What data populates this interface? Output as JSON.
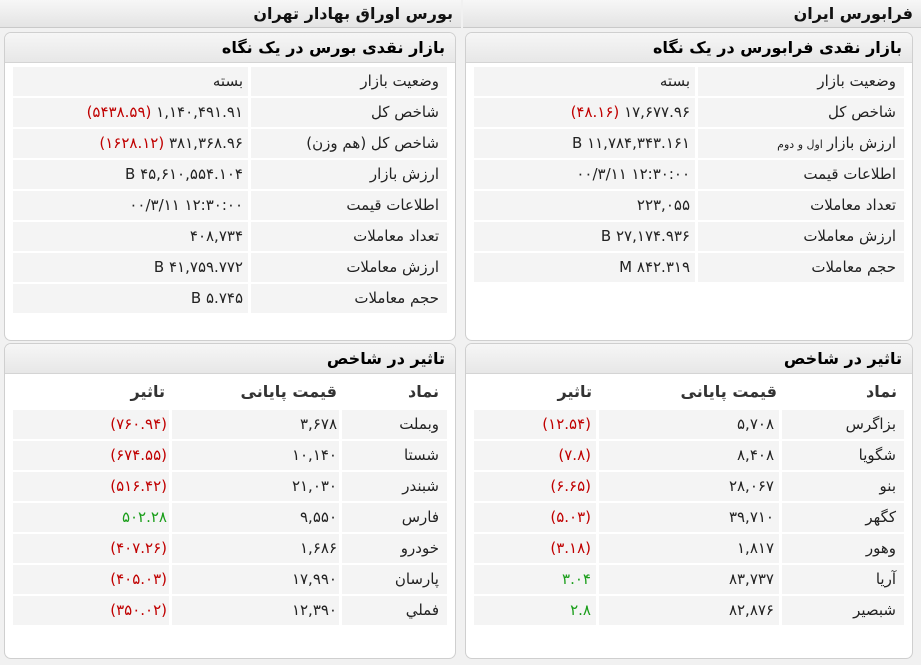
{
  "headers": {
    "right": "فرابورس ایران",
    "left": "بورس اوراق بهادار تهران"
  },
  "fara_overview": {
    "title": "بازار نقدی فرابورس در یک نگاه",
    "rows": [
      {
        "label": "وضعیت بازار",
        "sub": "",
        "value": "بسته",
        "change": ""
      },
      {
        "label": "شاخص کل",
        "sub": "",
        "value": "۱۷,۶۷۷.۹۶",
        "change": "(۴۸.۱۶)"
      },
      {
        "label": "ارزش بازار",
        "sub": "اول و دوم",
        "value": "۱۱,۷۸۴,۳۴۳.۱۶۱ B",
        "change": ""
      },
      {
        "label": "اطلاعات قیمت",
        "sub": "",
        "value": "۱۲:۳۰:۰۰ ۰۰/۳/۱۱",
        "change": ""
      },
      {
        "label": "تعداد معاملات",
        "sub": "",
        "value": "۲۲۳,۰۵۵",
        "change": ""
      },
      {
        "label": "ارزش معاملات",
        "sub": "",
        "value": "۲۷,۱۷۴.۹۳۶ B",
        "change": ""
      },
      {
        "label": "حجم معاملات",
        "sub": "",
        "value": "۸۴۲.۳۱۹ M",
        "change": ""
      }
    ]
  },
  "bourse_overview": {
    "title": "بازار نقدی بورس در یک نگاه",
    "rows": [
      {
        "label": "وضعیت بازار",
        "value": "بسته",
        "change": ""
      },
      {
        "label": "شاخص کل",
        "value": "۱,۱۴۰,۴۹۱.۹۱",
        "change": "(۵۴۳۸.۵۹)"
      },
      {
        "label": "شاخص کل (هم وزن)",
        "value": "۳۸۱,۳۶۸.۹۶",
        "change": "(۱۶۲۸.۱۲)"
      },
      {
        "label": "ارزش بازار",
        "value": "۴۵,۶۱۰,۵۵۴.۱۰۴ B",
        "change": ""
      },
      {
        "label": "اطلاعات قیمت",
        "value": "۱۲:۳۰:۰۰ ۰۰/۳/۱۱",
        "change": ""
      },
      {
        "label": "تعداد معاملات",
        "value": "۴۰۸,۷۳۴",
        "change": ""
      },
      {
        "label": "ارزش معاملات",
        "value": "۴۱,۷۵۹.۷۷۲ B",
        "change": ""
      },
      {
        "label": "حجم معاملات",
        "value": "۵.۷۴۵ B",
        "change": ""
      }
    ]
  },
  "fara_impact": {
    "title": "تاثیر در شاخص",
    "columns": {
      "symbol": "نماد",
      "price": "قیمت پایانی",
      "impact": "تاثیر"
    },
    "rows": [
      {
        "symbol": "بزاگرس",
        "price": "۵,۷۰۸",
        "impact": "(۱۲.۵۴)",
        "sign": "neg"
      },
      {
        "symbol": "شگویا",
        "price": "۸,۴۰۸",
        "impact": "(۷.۸)",
        "sign": "neg"
      },
      {
        "symbol": "بنو",
        "price": "۲۸,۰۶۷",
        "impact": "(۶.۶۵)",
        "sign": "neg"
      },
      {
        "symbol": "کگهر",
        "price": "۳۹,۷۱۰",
        "impact": "(۵.۰۳)",
        "sign": "neg"
      },
      {
        "symbol": "وهور",
        "price": "۱,۸۱۷",
        "impact": "(۳.۱۸)",
        "sign": "neg"
      },
      {
        "symbol": "آریا",
        "price": "۸۳,۷۳۷",
        "impact": "۳.۰۴",
        "sign": "pos"
      },
      {
        "symbol": "شبصیر",
        "price": "۸۲,۸۷۶",
        "impact": "۲.۸",
        "sign": "pos"
      }
    ]
  },
  "bourse_impact": {
    "title": "تاثیر در شاخص",
    "columns": {
      "symbol": "نماد",
      "price": "قیمت پایانی",
      "impact": "تاثیر"
    },
    "rows": [
      {
        "symbol": "وبملت",
        "price": "۳,۶۷۸",
        "impact": "(۷۶۰.۹۴)",
        "sign": "neg"
      },
      {
        "symbol": "شستا",
        "price": "۱۰,۱۴۰",
        "impact": "(۶۷۴.۵۵)",
        "sign": "neg"
      },
      {
        "symbol": "شبندر",
        "price": "۲۱,۰۳۰",
        "impact": "(۵۱۶.۴۲)",
        "sign": "neg"
      },
      {
        "symbol": "فارس",
        "price": "۹,۵۵۰",
        "impact": "۵۰۲.۲۸",
        "sign": "pos"
      },
      {
        "symbol": "خودرو",
        "price": "۱,۶۸۶",
        "impact": "(۴۰۷.۲۶)",
        "sign": "neg"
      },
      {
        "symbol": "پارسان",
        "price": "۱۷,۹۹۰",
        "impact": "(۴۰۵.۰۳)",
        "sign": "neg"
      },
      {
        "symbol": "فملي",
        "price": "۱۲,۳۹۰",
        "impact": "(۳۵۰.۰۲)",
        "sign": "neg"
      }
    ]
  }
}
